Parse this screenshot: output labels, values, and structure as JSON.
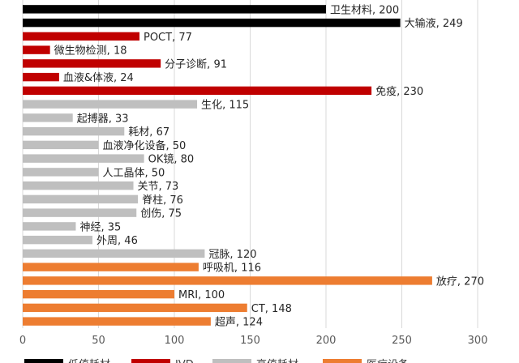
{
  "chart_data": {
    "type": "bar",
    "orientation": "horizontal",
    "xlim": [
      0,
      300
    ],
    "xticks": [
      0,
      50,
      100,
      150,
      200,
      250,
      300
    ],
    "grid": "vertical",
    "legend_position": "bottom",
    "bars": [
      {
        "label": "卫生材料",
        "value": 200,
        "color": "#000000"
      },
      {
        "label": "大输液",
        "value": 249,
        "color": "#000000"
      },
      {
        "label": "POCT",
        "value": 77,
        "color": "#c00000"
      },
      {
        "label": "微生物检测",
        "value": 18,
        "color": "#c00000"
      },
      {
        "label": "分子诊断",
        "value": 91,
        "color": "#c00000"
      },
      {
        "label": "血液&体液",
        "value": 24,
        "color": "#c00000"
      },
      {
        "label": "免疫",
        "value": 230,
        "color": "#c00000"
      },
      {
        "label": "生化",
        "value": 115,
        "color": "#bfbfbf"
      },
      {
        "label": "起搏器",
        "value": 33,
        "color": "#bfbfbf"
      },
      {
        "label": "耗材",
        "value": 67,
        "color": "#bfbfbf"
      },
      {
        "label": "血液净化设备",
        "value": 50,
        "color": "#bfbfbf"
      },
      {
        "label": "OK镜",
        "value": 80,
        "color": "#bfbfbf"
      },
      {
        "label": "人工晶体",
        "value": 50,
        "color": "#bfbfbf"
      },
      {
        "label": "关节",
        "value": 73,
        "color": "#bfbfbf"
      },
      {
        "label": "脊柱",
        "value": 76,
        "color": "#bfbfbf"
      },
      {
        "label": "创伤",
        "value": 75,
        "color": "#bfbfbf"
      },
      {
        "label": "神经",
        "value": 35,
        "color": "#bfbfbf"
      },
      {
        "label": "外周",
        "value": 46,
        "color": "#bfbfbf"
      },
      {
        "label": "冠脉",
        "value": 120,
        "color": "#bfbfbf"
      },
      {
        "label": "呼吸机",
        "value": 116,
        "color": "#ed7d31"
      },
      {
        "label": "放疗",
        "value": 270,
        "color": "#ed7d31"
      },
      {
        "label": "MRI",
        "value": 100,
        "color": "#ed7d31"
      },
      {
        "label": "CT",
        "value": 148,
        "color": "#ed7d31"
      },
      {
        "label": "超声",
        "value": 124,
        "color": "#ed7d31"
      }
    ],
    "legend": [
      {
        "name": "低值耗材",
        "color": "#000000"
      },
      {
        "name": "IVD",
        "color": "#c00000"
      },
      {
        "name": "高值耗材",
        "color": "#bfbfbf"
      },
      {
        "name": "医疗设备",
        "color": "#ed7d31"
      }
    ]
  }
}
